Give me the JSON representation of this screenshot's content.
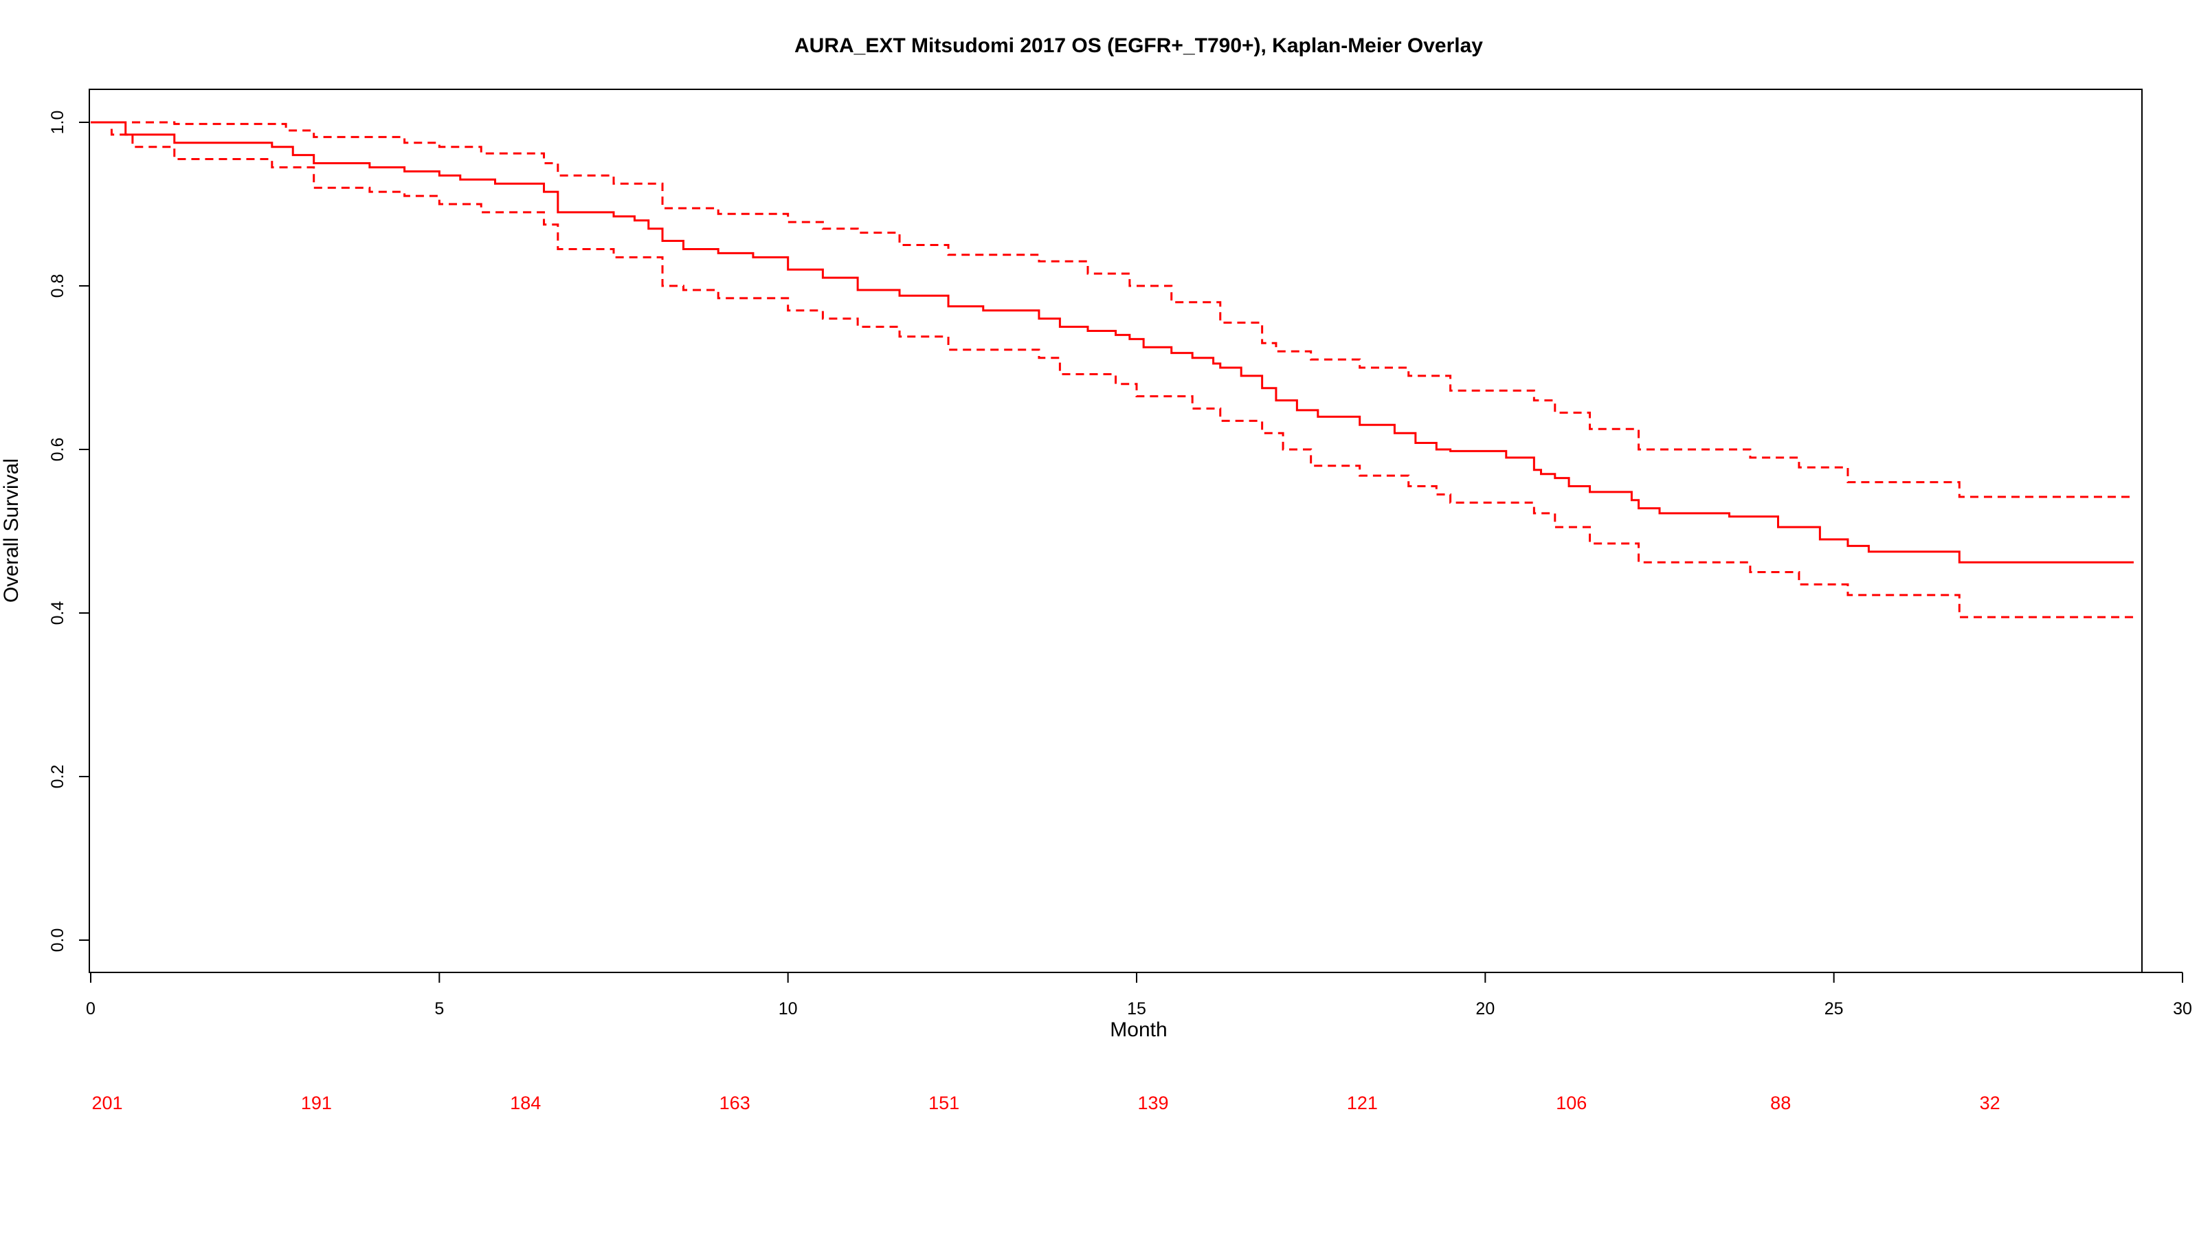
{
  "chart_data": {
    "type": "line",
    "plot_kind": "kaplan-meier",
    "title": "AURA_EXT Mitsudomi 2017 OS (EGFR+_T790+), Kaplan-Meier Overlay",
    "xlabel": "Month",
    "ylabel": "Overall Survival",
    "xlim": [
      0,
      30
    ],
    "ylim": [
      0,
      1
    ],
    "x_ticks": [
      0,
      5,
      10,
      15,
      20,
      25,
      30
    ],
    "y_ticks": [
      0.0,
      0.2,
      0.4,
      0.6,
      0.8,
      1.0
    ],
    "x_tick_labels": [
      "0",
      "5",
      "10",
      "15",
      "20",
      "25",
      "30"
    ],
    "y_tick_labels": [
      "0.0",
      "0.2",
      "0.4",
      "0.6",
      "0.8",
      "1.0"
    ],
    "grid": false,
    "legend": "none",
    "color": "#ff0000",
    "series": [
      {
        "role": "estimate",
        "line_style": "solid",
        "x": [
          0,
          0.5,
          1.2,
          2.6,
          2.9,
          3.2,
          4.0,
          4.5,
          5.0,
          5.3,
          5.8,
          6.5,
          6.7,
          6.9,
          7.5,
          7.8,
          8.0,
          8.2,
          8.5,
          9.0,
          9.5,
          10.0,
          10.5,
          11.0,
          11.6,
          12.3,
          12.8,
          13.6,
          13.9,
          14.3,
          14.7,
          14.9,
          15.1,
          15.5,
          15.8,
          16.1,
          16.2,
          16.5,
          16.8,
          17.0,
          17.3,
          17.6,
          18.2,
          18.7,
          19.0,
          19.3,
          19.5,
          20.3,
          20.7,
          20.8,
          21.0,
          21.2,
          21.5,
          22.1,
          22.2,
          22.5,
          23.5,
          24.2,
          24.8,
          25.2,
          25.5,
          26.8,
          29.3
        ],
        "y": [
          1.0,
          0.985,
          0.975,
          0.97,
          0.96,
          0.95,
          0.945,
          0.94,
          0.935,
          0.93,
          0.925,
          0.915,
          0.89,
          0.89,
          0.885,
          0.88,
          0.87,
          0.855,
          0.845,
          0.84,
          0.835,
          0.82,
          0.81,
          0.795,
          0.788,
          0.775,
          0.77,
          0.76,
          0.75,
          0.745,
          0.74,
          0.735,
          0.725,
          0.718,
          0.712,
          0.705,
          0.7,
          0.69,
          0.675,
          0.66,
          0.648,
          0.64,
          0.63,
          0.62,
          0.608,
          0.6,
          0.598,
          0.59,
          0.575,
          0.57,
          0.565,
          0.555,
          0.548,
          0.538,
          0.528,
          0.522,
          0.518,
          0.505,
          0.49,
          0.482,
          0.475,
          0.462,
          0.462
        ]
      },
      {
        "role": "upper confidence bound",
        "line_style": "dashed",
        "x": [
          0,
          1.2,
          2.8,
          3.2,
          4.5,
          5.0,
          5.6,
          6.5,
          6.7,
          7.5,
          8.2,
          9.0,
          10.0,
          10.5,
          11.0,
          11.6,
          12.3,
          13.6,
          14.3,
          14.9,
          15.5,
          16.2,
          16.8,
          17.0,
          17.5,
          18.2,
          18.9,
          19.5,
          20.7,
          21.0,
          21.5,
          22.2,
          23.8,
          24.5,
          25.2,
          26.8,
          29.3
        ],
        "y": [
          1.0,
          0.998,
          0.99,
          0.982,
          0.975,
          0.97,
          0.962,
          0.95,
          0.935,
          0.925,
          0.895,
          0.888,
          0.878,
          0.87,
          0.865,
          0.85,
          0.838,
          0.83,
          0.815,
          0.8,
          0.78,
          0.755,
          0.73,
          0.72,
          0.71,
          0.7,
          0.69,
          0.672,
          0.66,
          0.645,
          0.625,
          0.6,
          0.59,
          0.578,
          0.56,
          0.542,
          0.542
        ]
      },
      {
        "role": "lower confidence bound",
        "line_style": "dashed",
        "x": [
          0,
          0.3,
          0.6,
          1.2,
          2.6,
          3.2,
          4.0,
          4.5,
          5.0,
          5.6,
          6.5,
          6.7,
          7.5,
          8.2,
          8.5,
          9.0,
          10.0,
          10.5,
          11.0,
          11.6,
          12.3,
          13.6,
          13.9,
          14.7,
          15.0,
          15.8,
          16.2,
          16.8,
          17.1,
          17.5,
          18.2,
          18.9,
          19.3,
          19.5,
          20.7,
          21.0,
          21.5,
          22.2,
          23.8,
          24.5,
          25.2,
          26.8,
          29.3
        ],
        "y": [
          1.0,
          0.985,
          0.97,
          0.955,
          0.945,
          0.92,
          0.915,
          0.91,
          0.9,
          0.89,
          0.875,
          0.845,
          0.835,
          0.8,
          0.795,
          0.785,
          0.77,
          0.76,
          0.75,
          0.738,
          0.722,
          0.712,
          0.692,
          0.68,
          0.665,
          0.65,
          0.635,
          0.62,
          0.6,
          0.58,
          0.568,
          0.555,
          0.545,
          0.535,
          0.522,
          0.505,
          0.485,
          0.462,
          0.45,
          0.435,
          0.422,
          0.395,
          0.395
        ]
      }
    ],
    "risk_table": {
      "x": [
        0,
        3,
        6,
        9,
        12,
        15,
        18,
        21,
        24,
        27
      ],
      "counts": [
        "201",
        "191",
        "184",
        "163",
        "151",
        "139",
        "121",
        "106",
        "88",
        "32"
      ],
      "color": "#ff0000"
    }
  }
}
